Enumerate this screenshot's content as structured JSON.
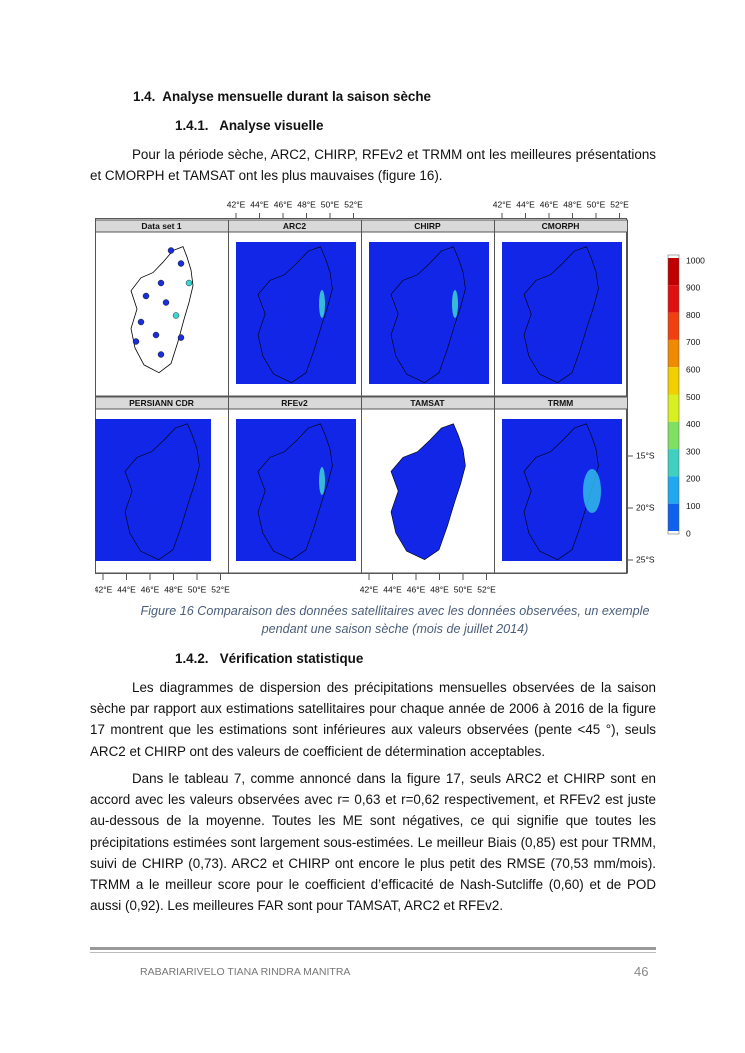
{
  "section": {
    "number": "1.4.",
    "title": "Analyse mensuelle durant la saison sèche"
  },
  "subsection_1": {
    "number": "1.4.1.",
    "title": "Analyse visuelle"
  },
  "paragraph_1": "Pour la période sèche, ARC2, CHIRP, RFEv2 et TRMM ont les meilleures présentations et CMORPH et TAMSAT ont les plus mauvaises (figure 16).",
  "figure": {
    "panels": [
      "Data set 1",
      "ARC2",
      "CHIRP",
      "CMORPH",
      "PERSIANN CDR",
      "RFEv2",
      "TAMSAT",
      "TRMM"
    ],
    "lon_labels": [
      "42°E",
      "44°E",
      "46°E",
      "48°E",
      "50°E",
      "52°E"
    ],
    "lat_labels": [
      "15°S",
      "20°S",
      "25°S"
    ],
    "colorbar_labels": [
      1000,
      900,
      800,
      700,
      600,
      500,
      400,
      300,
      200,
      100,
      0
    ],
    "caption": "Figure 16 Comparaison des données satellitaires avec les données observées, un exemple pendant une saison sèche (mois de juillet 2014)"
  },
  "subsection_2": {
    "number": "1.4.2.",
    "title": "Vérification statistique"
  },
  "paragraph_2": "Les diagrammes de dispersion des précipitations mensuelles observées de la saison sèche par rapport aux estimations satellitaires pour chaque année de 2006 à 2016 de la figure 17 montrent que les estimations sont inférieures aux valeurs observées (pente <45 °), seuls ARC2 et CHIRP ont des valeurs de coefficient de détermination acceptables.",
  "paragraph_3": "Dans le tableau 7, comme annoncé dans la figure 17, seuls ARC2 et CHIRP sont en accord avec les valeurs observées avec r= 0,63 et r=0,62 respectivement, et RFEv2 est juste au-dessous de la moyenne. Toutes les ME sont négatives, ce qui signifie que toutes les précipitations estimées sont largement sous-estimées. Le meilleur Biais (0,85) est pour TRMM, suivi de CHIRP (0,73). ARC2 et CHIRP ont encore le plus petit des RMSE (70,53 mm/mois). TRMM a le meilleur score pour le coefficient d’efficacité de Nash-Sutcliffe (0,60) et de POD aussi (0,92). Les meilleures FAR sont pour TAMSAT, ARC2 et RFEv2.",
  "footer": {
    "author": "RABARIARIVELO TIANA RINDRA MANITRA",
    "page": "46"
  }
}
